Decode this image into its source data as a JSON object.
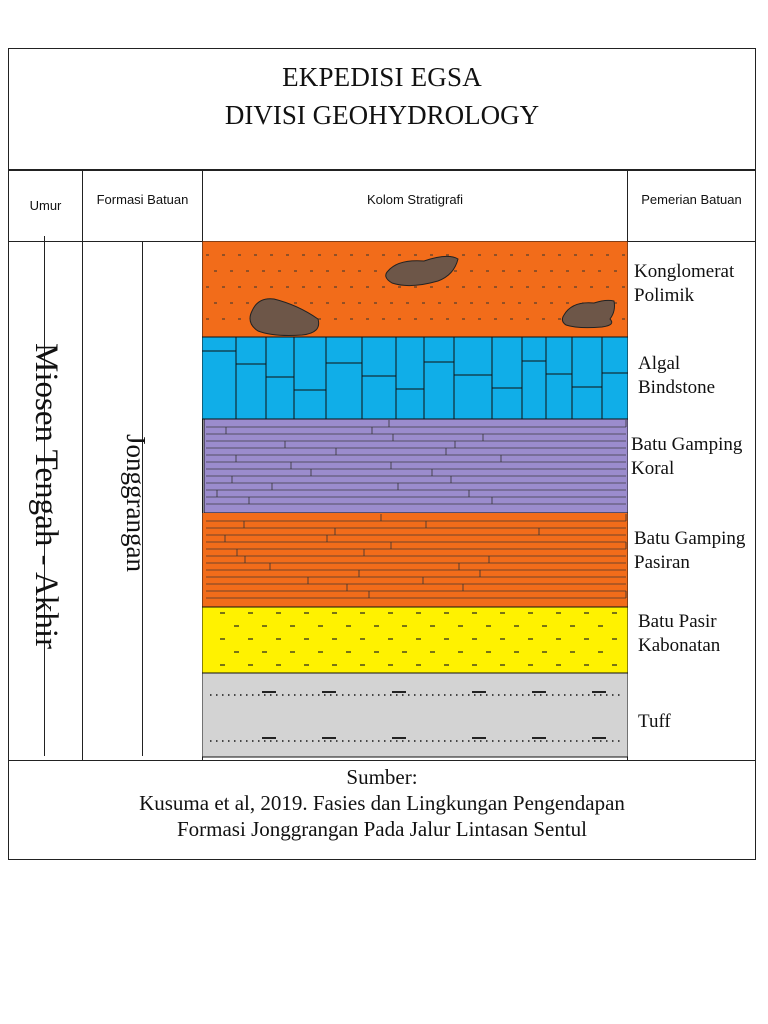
{
  "title": {
    "line1": "EKPEDISI EGSA",
    "line2": "DIVISI GEOHYDROLOGY"
  },
  "headers": {
    "umur": "Umur",
    "formasi": "Formasi Batuan",
    "kolom": "Kolom Stratigrafi",
    "pemerian": "Pemerian Batuan"
  },
  "age": "Miosen Tengah - Akhir",
  "formation": "Jonggrangan",
  "layers": [
    {
      "line1": "Konglomerat",
      "line2": "Polimik",
      "color": "#f26c1a",
      "pattern": "conglomerate"
    },
    {
      "line1": "Algal",
      "line2": "Bindstone",
      "color": "#10aee8",
      "pattern": "blocks"
    },
    {
      "line1": "Batu Gamping",
      "line2": "Koral",
      "color": "#9b8ccd",
      "pattern": "thin-limestone"
    },
    {
      "line1": "Batu Gamping",
      "line2": "Pasiran",
      "color": "#f26c1a",
      "pattern": "thin-limestone"
    },
    {
      "line1": "Batu Pasir",
      "line2": "Kabonatan",
      "color": "#fff200",
      "pattern": "dashes"
    },
    {
      "line1": "Tuff",
      "line2": "",
      "color": "#d3d3d3",
      "pattern": "dash-dot"
    }
  ],
  "source": {
    "line1": "Sumber:",
    "line2": "Kusuma et al, 2019. Fasies dan Lingkungan Pengendapan",
    "line3": "Formasi Jonggrangan Pada Jalur Lintasan Sentul"
  }
}
